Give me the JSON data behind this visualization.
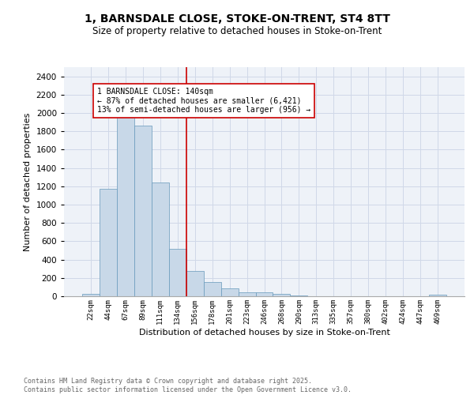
{
  "title_line1": "1, BARNSDALE CLOSE, STOKE-ON-TRENT, ST4 8TT",
  "title_line2": "Size of property relative to detached houses in Stoke-on-Trent",
  "xlabel": "Distribution of detached houses by size in Stoke-on-Trent",
  "ylabel": "Number of detached properties",
  "bar_labels": [
    "22sqm",
    "44sqm",
    "67sqm",
    "89sqm",
    "111sqm",
    "134sqm",
    "156sqm",
    "178sqm",
    "201sqm",
    "223sqm",
    "246sqm",
    "268sqm",
    "290sqm",
    "313sqm",
    "335sqm",
    "357sqm",
    "380sqm",
    "402sqm",
    "424sqm",
    "447sqm",
    "469sqm"
  ],
  "bar_values": [
    25,
    1170,
    1980,
    1860,
    1240,
    520,
    275,
    155,
    90,
    45,
    45,
    22,
    10,
    0,
    0,
    0,
    0,
    0,
    0,
    0,
    15
  ],
  "bar_color": "#c8d8e8",
  "bar_edge_color": "#6699bb",
  "grid_color": "#d0d8e8",
  "background_color": "#eef2f8",
  "vline_x": 5.5,
  "vline_color": "#cc0000",
  "annotation_text": "1 BARNSDALE CLOSE: 140sqm\n← 87% of detached houses are smaller (6,421)\n13% of semi-detached houses are larger (956) →",
  "footer_text": "Contains HM Land Registry data © Crown copyright and database right 2025.\nContains public sector information licensed under the Open Government Licence v3.0.",
  "ylim": [
    0,
    2500
  ],
  "yticks": [
    0,
    200,
    400,
    600,
    800,
    1000,
    1200,
    1400,
    1600,
    1800,
    2000,
    2200,
    2400
  ]
}
